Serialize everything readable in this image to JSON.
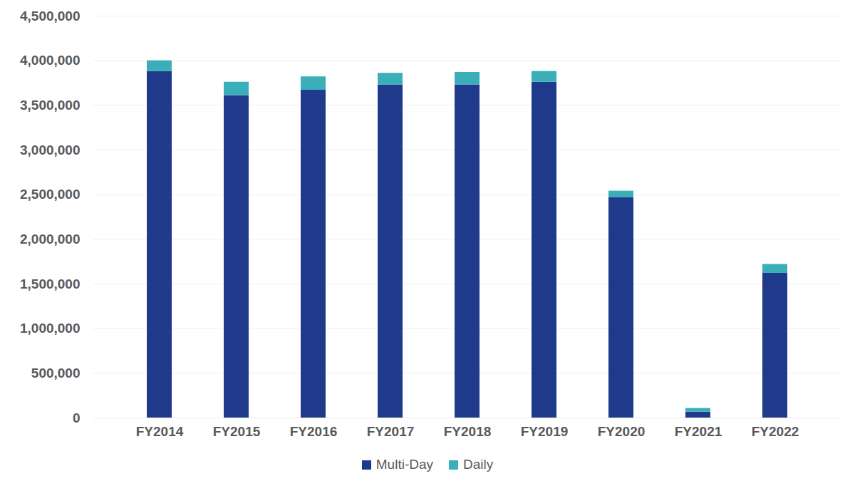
{
  "chart_data": {
    "type": "bar",
    "stacked": true,
    "grid": true,
    "legend": "bottom",
    "categories": [
      "FY2014",
      "FY2015",
      "FY2016",
      "FY2017",
      "FY2018",
      "FY2019",
      "FY2020",
      "FY2021",
      "FY2022"
    ],
    "series": [
      {
        "name": "Multi-Day",
        "color": "#1f3a8a",
        "values": [
          3880000,
          3610000,
          3670000,
          3730000,
          3730000,
          3760000,
          2470000,
          67000,
          1620000
        ]
      },
      {
        "name": "Daily",
        "color": "#3aafb9",
        "values": [
          120000,
          150000,
          150000,
          130000,
          140000,
          120000,
          70000,
          40000,
          100000
        ]
      }
    ],
    "ylim": [
      0,
      4500000
    ],
    "yticks": [
      {
        "value": 0,
        "label": "0"
      },
      {
        "value": 500000,
        "label": "500,000"
      },
      {
        "value": 1000000,
        "label": "1,000,000"
      },
      {
        "value": 1500000,
        "label": "1,500,000"
      },
      {
        "value": 2000000,
        "label": "2,000,000"
      },
      {
        "value": 2500000,
        "label": "2,500,000"
      },
      {
        "value": 3000000,
        "label": "3,000,000"
      },
      {
        "value": 3500000,
        "label": "3,500,000"
      },
      {
        "value": 4000000,
        "label": "4,000,000"
      },
      {
        "value": 4500000,
        "label": "4,500,000"
      }
    ]
  }
}
